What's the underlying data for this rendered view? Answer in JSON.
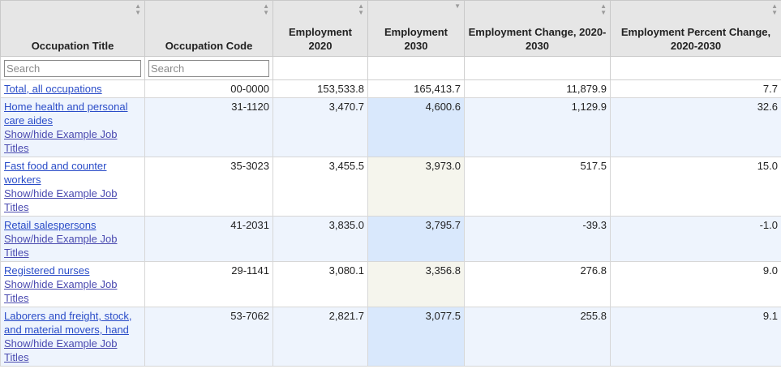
{
  "columns": [
    {
      "label": "Occupation Title"
    },
    {
      "label": "Occupation Code"
    },
    {
      "label": "Employment 2020"
    },
    {
      "label": "Employment 2030"
    },
    {
      "label": "Employment Change, 2020-2030"
    },
    {
      "label": "Employment Percent Change, 2020-2030"
    }
  ],
  "filters": {
    "title_placeholder": "Search",
    "code_placeholder": "Search"
  },
  "toggle_label": "Show/hide Example Job Titles",
  "rows": [
    {
      "title": "Total, all occupations",
      "code": "00-0000",
      "emp2020": "153,533.8",
      "emp2030": "165,413.7",
      "change": "11,879.9",
      "pct": "7.7"
    },
    {
      "title": "Home health and personal care aides",
      "code": "31-1120",
      "emp2020": "3,470.7",
      "emp2030": "4,600.6",
      "change": "1,129.9",
      "pct": "32.6"
    },
    {
      "title": "Fast food and counter workers",
      "code": "35-3023",
      "emp2020": "3,455.5",
      "emp2030": "3,973.0",
      "change": "517.5",
      "pct": "15.0"
    },
    {
      "title": "Retail salespersons",
      "code": "41-2031",
      "emp2020": "3,835.0",
      "emp2030": "3,795.7",
      "change": "-39.3",
      "pct": "-1.0"
    },
    {
      "title": "Registered nurses",
      "code": "29-1141",
      "emp2020": "3,080.1",
      "emp2030": "3,356.8",
      "change": "276.8",
      "pct": "9.0"
    },
    {
      "title": "Laborers and freight, stock, and material movers, hand",
      "code": "53-7062",
      "emp2020": "2,821.7",
      "emp2030": "3,077.5",
      "change": "255.8",
      "pct": "9.1"
    }
  ]
}
